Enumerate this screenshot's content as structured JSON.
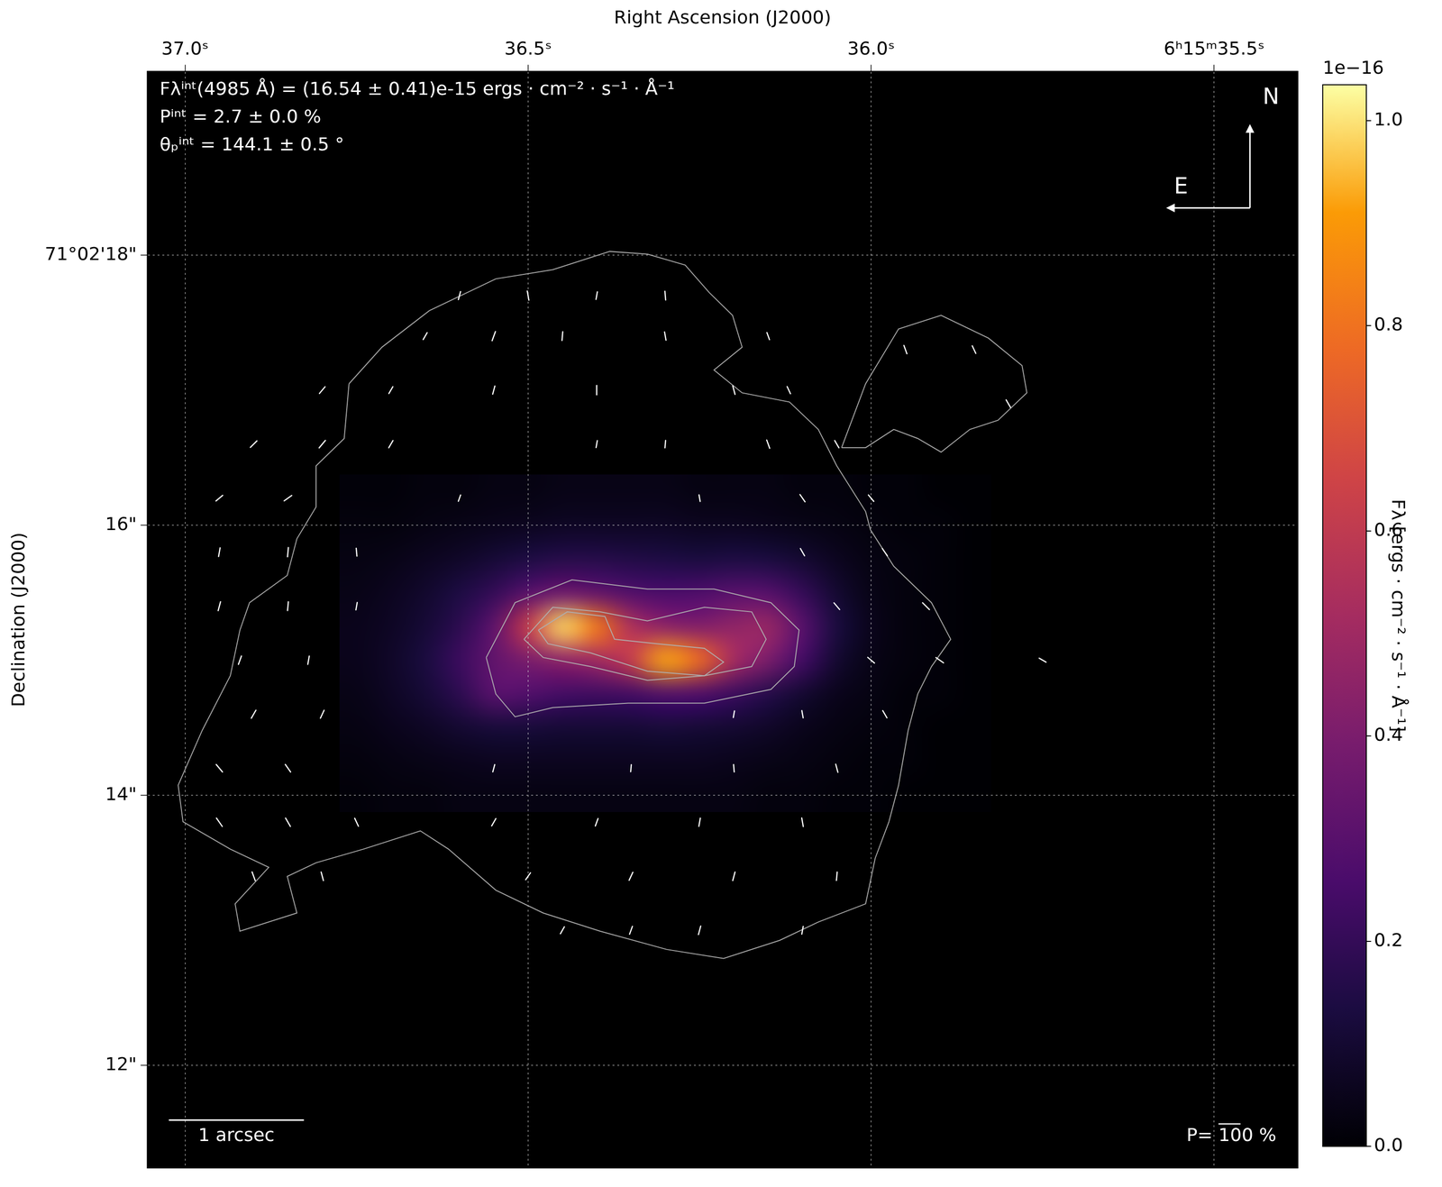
{
  "chart_data": {
    "type": "heatmap",
    "x_label": "Right Ascension (J2000)",
    "y_label": "Declination (J2000)",
    "xlim": [
      37.055,
      35.378
    ],
    "xticks": [
      {
        "value": 37.0,
        "label": "37.0ˢ"
      },
      {
        "value": 36.5,
        "label": "36.5ˢ"
      },
      {
        "value": 36.0,
        "label": "36.0ˢ"
      },
      {
        "value": 35.5,
        "label": "6ʰ15ᵐ35.5ˢ"
      }
    ],
    "ylim": [
      11.24,
      19.36
    ],
    "yticks": [
      {
        "value": 12,
        "label": "12\""
      },
      {
        "value": 14,
        "label": "14\""
      },
      {
        "value": 16,
        "label": "16\""
      },
      {
        "value": 18,
        "label": "71°02'18\""
      }
    ],
    "grid": true,
    "heatmap": {
      "x": [
        36.75,
        36.7,
        36.65,
        36.6,
        36.55,
        36.5,
        36.45,
        36.4,
        36.35,
        36.3,
        36.25,
        36.2,
        36.15,
        36.1,
        36.05,
        36.0,
        35.95,
        35.9,
        35.85
      ],
      "y": [
        16.25,
        16.0,
        15.75,
        15.5,
        15.25,
        15.0,
        14.75,
        14.5,
        14.25,
        14.0
      ],
      "z": [
        [
          0.01,
          0.01,
          0.02,
          0.02,
          0.03,
          0.03,
          0.04,
          0.04,
          0.04,
          0.04,
          0.03,
          0.03,
          0.03,
          0.02,
          0.02,
          0.01,
          0.01,
          0.0,
          0.0
        ],
        [
          0.02,
          0.02,
          0.03,
          0.04,
          0.05,
          0.06,
          0.07,
          0.07,
          0.07,
          0.07,
          0.06,
          0.06,
          0.05,
          0.04,
          0.03,
          0.02,
          0.01,
          0.01,
          0.0
        ],
        [
          0.03,
          0.04,
          0.06,
          0.08,
          0.11,
          0.14,
          0.16,
          0.16,
          0.15,
          0.14,
          0.13,
          0.14,
          0.13,
          0.1,
          0.06,
          0.03,
          0.02,
          0.01,
          0.0
        ],
        [
          0.04,
          0.06,
          0.09,
          0.14,
          0.2,
          0.3,
          0.36,
          0.33,
          0.28,
          0.26,
          0.27,
          0.3,
          0.29,
          0.2,
          0.1,
          0.04,
          0.02,
          0.01,
          0.0
        ],
        [
          0.05,
          0.07,
          0.11,
          0.18,
          0.32,
          0.62,
          0.98,
          0.82,
          0.55,
          0.45,
          0.42,
          0.46,
          0.48,
          0.3,
          0.13,
          0.05,
          0.02,
          0.01,
          0.0
        ],
        [
          0.05,
          0.08,
          0.13,
          0.22,
          0.33,
          0.4,
          0.45,
          0.5,
          0.62,
          0.92,
          0.78,
          0.52,
          0.4,
          0.24,
          0.1,
          0.04,
          0.02,
          0.01,
          0.0
        ],
        [
          0.04,
          0.07,
          0.11,
          0.18,
          0.3,
          0.28,
          0.24,
          0.23,
          0.24,
          0.28,
          0.27,
          0.22,
          0.16,
          0.1,
          0.05,
          0.03,
          0.01,
          0.01,
          0.0
        ],
        [
          0.03,
          0.05,
          0.07,
          0.1,
          0.12,
          0.12,
          0.11,
          0.11,
          0.11,
          0.12,
          0.11,
          0.1,
          0.08,
          0.05,
          0.03,
          0.02,
          0.01,
          0.0,
          0.0
        ],
        [
          0.02,
          0.03,
          0.04,
          0.05,
          0.06,
          0.06,
          0.06,
          0.06,
          0.06,
          0.06,
          0.06,
          0.05,
          0.04,
          0.03,
          0.02,
          0.01,
          0.01,
          0.0,
          0.0
        ],
        [
          0.01,
          0.02,
          0.02,
          0.03,
          0.03,
          0.03,
          0.03,
          0.03,
          0.03,
          0.03,
          0.03,
          0.03,
          0.02,
          0.02,
          0.01,
          0.01,
          0.0,
          0.0,
          0.0
        ]
      ]
    },
    "colorbar": {
      "label": "Fλ [ergs · cm⁻² · s⁻¹ · Å⁻¹]",
      "offset_label": "1e−16",
      "lim": [
        0,
        1.035
      ],
      "ticks": [
        {
          "value": 0,
          "label": "0.0"
        },
        {
          "value": 0.2,
          "label": "0.2"
        },
        {
          "value": 0.4,
          "label": "0.4"
        },
        {
          "value": 0.6,
          "label": "0.6"
        },
        {
          "value": 0.8,
          "label": "0.8"
        },
        {
          "value": 1.0,
          "label": "1.0"
        }
      ]
    },
    "contours": [
      [
        [
          36.761,
          17.047
        ],
        [
          36.713,
          17.318
        ],
        [
          36.644,
          17.588
        ],
        [
          36.547,
          17.824
        ],
        [
          36.464,
          17.892
        ],
        [
          36.381,
          18.027
        ],
        [
          36.326,
          18.007
        ],
        [
          36.271,
          17.926
        ],
        [
          36.236,
          17.723
        ],
        [
          36.202,
          17.554
        ],
        [
          36.188,
          17.318
        ],
        [
          36.229,
          17.149
        ],
        [
          36.188,
          16.98
        ],
        [
          36.119,
          16.912
        ],
        [
          36.077,
          16.709
        ],
        [
          36.05,
          16.439
        ],
        [
          36.008,
          16.101
        ],
        [
          36.001,
          15.966
        ],
        [
          35.967,
          15.696
        ],
        [
          35.912,
          15.426
        ],
        [
          35.884,
          15.155
        ],
        [
          35.912,
          14.953
        ],
        [
          35.932,
          14.75
        ],
        [
          35.946,
          14.48
        ],
        [
          35.96,
          14.074
        ],
        [
          35.974,
          13.804
        ],
        [
          35.994,
          13.534
        ],
        [
          36.008,
          13.196
        ],
        [
          36.077,
          13.061
        ],
        [
          36.133,
          12.926
        ],
        [
          36.215,
          12.791
        ],
        [
          36.298,
          12.858
        ],
        [
          36.395,
          12.993
        ],
        [
          36.478,
          13.128
        ],
        [
          36.547,
          13.297
        ],
        [
          36.616,
          13.601
        ],
        [
          36.657,
          13.736
        ],
        [
          36.74,
          13.601
        ],
        [
          36.809,
          13.5
        ],
        [
          36.851,
          13.399
        ],
        [
          36.837,
          13.128
        ],
        [
          36.92,
          12.993
        ],
        [
          36.927,
          13.196
        ],
        [
          36.878,
          13.466
        ],
        [
          36.934,
          13.601
        ],
        [
          37.003,
          13.804
        ],
        [
          37.01,
          14.074
        ],
        [
          36.975,
          14.48
        ],
        [
          36.934,
          14.885
        ],
        [
          36.92,
          15.223
        ],
        [
          36.906,
          15.426
        ],
        [
          36.851,
          15.628
        ],
        [
          36.837,
          15.899
        ],
        [
          36.809,
          16.135
        ],
        [
          36.809,
          16.439
        ],
        [
          36.768,
          16.642
        ]
      ],
      [
        [
          36.043,
          16.574
        ],
        [
          36.008,
          17.047
        ],
        [
          35.96,
          17.453
        ],
        [
          35.898,
          17.554
        ],
        [
          35.829,
          17.385
        ],
        [
          35.78,
          17.182
        ],
        [
          35.773,
          16.98
        ],
        [
          35.815,
          16.777
        ],
        [
          35.856,
          16.709
        ],
        [
          35.898,
          16.541
        ],
        [
          35.932,
          16.642
        ],
        [
          35.967,
          16.709
        ],
        [
          36.008,
          16.574
        ]
      ],
      [
        [
          36.561,
          15.02
        ],
        [
          36.519,
          15.426
        ],
        [
          36.436,
          15.595
        ],
        [
          36.326,
          15.527
        ],
        [
          36.229,
          15.527
        ],
        [
          36.146,
          15.426
        ],
        [
          36.105,
          15.223
        ],
        [
          36.112,
          14.953
        ],
        [
          36.146,
          14.784
        ],
        [
          36.243,
          14.682
        ],
        [
          36.354,
          14.682
        ],
        [
          36.464,
          14.649
        ],
        [
          36.519,
          14.581
        ],
        [
          36.547,
          14.75
        ]
      ],
      [
        [
          36.506,
          15.155
        ],
        [
          36.464,
          15.392
        ],
        [
          36.395,
          15.358
        ],
        [
          36.326,
          15.291
        ],
        [
          36.243,
          15.392
        ],
        [
          36.174,
          15.358
        ],
        [
          36.153,
          15.155
        ],
        [
          36.174,
          14.953
        ],
        [
          36.243,
          14.885
        ],
        [
          36.326,
          14.851
        ],
        [
          36.409,
          14.953
        ],
        [
          36.478,
          15.02
        ]
      ],
      [
        [
          36.485,
          15.223
        ],
        [
          36.443,
          15.358
        ],
        [
          36.388,
          15.324
        ],
        [
          36.374,
          15.155
        ],
        [
          36.312,
          15.122
        ],
        [
          36.243,
          15.088
        ],
        [
          36.215,
          14.986
        ],
        [
          36.243,
          14.885
        ],
        [
          36.326,
          14.919
        ],
        [
          36.409,
          15.054
        ],
        [
          36.471,
          15.122
        ]
      ]
    ],
    "polarization_vectors": {
      "ra": [
        36.6,
        36.5,
        36.4,
        36.3,
        36.65,
        36.55,
        36.45,
        36.3,
        36.15,
        36.8,
        36.7,
        36.55,
        36.4,
        36.2,
        36.12,
        36.9,
        36.8,
        36.7,
        36.4,
        36.3,
        36.15,
        36.05,
        36.95,
        36.85,
        36.6,
        36.25,
        36.1,
        36.0,
        36.95,
        36.85,
        36.75,
        36.1,
        35.98,
        36.95,
        36.85,
        36.75,
        36.05,
        35.92,
        36.92,
        36.82,
        36.0,
        35.9,
        35.75,
        36.9,
        36.8,
        36.2,
        36.1,
        35.98,
        36.95,
        36.85,
        36.55,
        36.35,
        36.2,
        36.05,
        36.95,
        36.85,
        36.75,
        36.55,
        36.4,
        36.25,
        36.1,
        36.9,
        36.8,
        36.5,
        36.35,
        36.2,
        36.05,
        36.45,
        36.35,
        36.25,
        36.1,
        35.95,
        35.85,
        35.8
      ],
      "dec": [
        17.7,
        17.7,
        17.7,
        17.7,
        17.4,
        17.4,
        17.4,
        17.4,
        17.4,
        17.0,
        17.0,
        17.0,
        17.0,
        17.0,
        17.0,
        16.6,
        16.6,
        16.6,
        16.6,
        16.6,
        16.6,
        16.6,
        16.2,
        16.2,
        16.2,
        16.2,
        16.2,
        16.2,
        15.8,
        15.8,
        15.8,
        15.8,
        15.8,
        15.4,
        15.4,
        15.4,
        15.4,
        15.4,
        15.0,
        15.0,
        15.0,
        15.0,
        15.0,
        14.6,
        14.6,
        14.6,
        14.6,
        14.6,
        14.2,
        14.2,
        14.2,
        14.2,
        14.2,
        14.2,
        13.8,
        13.8,
        13.8,
        13.8,
        13.8,
        13.8,
        13.8,
        13.4,
        13.4,
        13.4,
        13.4,
        13.4,
        13.4,
        13.0,
        13.0,
        13.0,
        13.0,
        17.3,
        17.3,
        16.9
      ],
      "P": [
        38,
        42,
        35,
        40,
        36,
        44,
        40,
        38,
        34,
        40,
        36,
        38,
        42,
        40,
        36,
        42,
        44,
        38,
        32,
        34,
        40,
        38,
        40,
        42,
        30,
        30,
        40,
        38,
        40,
        42,
        36,
        38,
        40,
        42,
        40,
        34,
        40,
        44,
        40,
        38,
        40,
        42,
        36,
        42,
        40,
        30,
        34,
        38,
        44,
        42,
        34,
        32,
        34,
        38,
        46,
        44,
        40,
        38,
        36,
        38,
        40,
        42,
        40,
        38,
        40,
        40,
        38,
        36,
        38,
        40,
        36,
        40,
        38,
        40
      ],
      "theta": [
        165,
        10,
        170,
        5,
        150,
        160,
        175,
        10,
        20,
        140,
        150,
        165,
        0,
        15,
        25,
        135,
        140,
        150,
        170,
        175,
        20,
        30,
        130,
        125,
        160,
        10,
        35,
        40,
        170,
        175,
        5,
        30,
        35,
        165,
        175,
        170,
        40,
        45,
        160,
        170,
        50,
        55,
        60,
        150,
        155,
        170,
        10,
        30,
        40,
        35,
        165,
        175,
        5,
        15,
        35,
        30,
        25,
        150,
        160,
        170,
        10,
        20,
        15,
        145,
        155,
        165,
        175,
        150,
        160,
        165,
        170,
        20,
        25,
        30
      ]
    },
    "annotations": [
      "Fλⁱⁿᵗ(4985 Å) = (16.54 ± 0.41)e-15 ergs · cm⁻² · s⁻¹ · Å⁻¹",
      "Pⁱⁿᵗ = 2.7 ± 0.0 %",
      "θₚⁱⁿᵗ = 144.1 ± 0.5 °"
    ],
    "compass": {
      "north": "N",
      "east": "E"
    },
    "scale_bar": {
      "length": 1,
      "label": "1 arcsec"
    },
    "polarization_scale": {
      "value": 100,
      "label": "P= 100 %"
    }
  }
}
